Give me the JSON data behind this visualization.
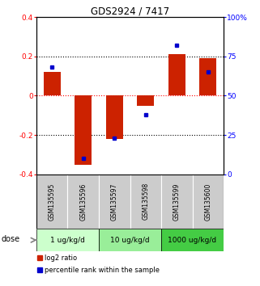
{
  "title": "GDS2924 / 7417",
  "samples": [
    "GSM135595",
    "GSM135596",
    "GSM135597",
    "GSM135598",
    "GSM135599",
    "GSM135600"
  ],
  "log2_ratios": [
    0.12,
    -0.35,
    -0.22,
    -0.05,
    0.21,
    0.19
  ],
  "percentile_ranks": [
    68,
    10,
    23,
    38,
    82,
    65
  ],
  "bar_color": "#cc2200",
  "dot_color": "#0000cc",
  "ylim_left": [
    -0.4,
    0.4
  ],
  "ylim_right": [
    0,
    100
  ],
  "yticks_left": [
    -0.4,
    -0.2,
    0.0,
    0.2,
    0.4
  ],
  "yticks_right": [
    0,
    25,
    50,
    75,
    100
  ],
  "ytick_labels_right": [
    "0",
    "25",
    "50",
    "75",
    "100%"
  ],
  "ytick_labels_left": [
    "-0.4",
    "-0.2",
    "0",
    "0.2",
    "0.4"
  ],
  "dose_groups": [
    {
      "label": "1 ug/kg/d",
      "cols": [
        0,
        1
      ],
      "color": "#ccffcc"
    },
    {
      "label": "10 ug/kg/d",
      "cols": [
        2,
        3
      ],
      "color": "#99ee99"
    },
    {
      "label": "1000 ug/kg/d",
      "cols": [
        4,
        5
      ],
      "color": "#44cc44"
    }
  ],
  "dose_label": "dose",
  "legend_red_label": "log2 ratio",
  "legend_blue_label": "percentile rank within the sample",
  "sample_bg_color": "#cccccc",
  "bar_width": 0.55,
  "dot_size": 3.5
}
